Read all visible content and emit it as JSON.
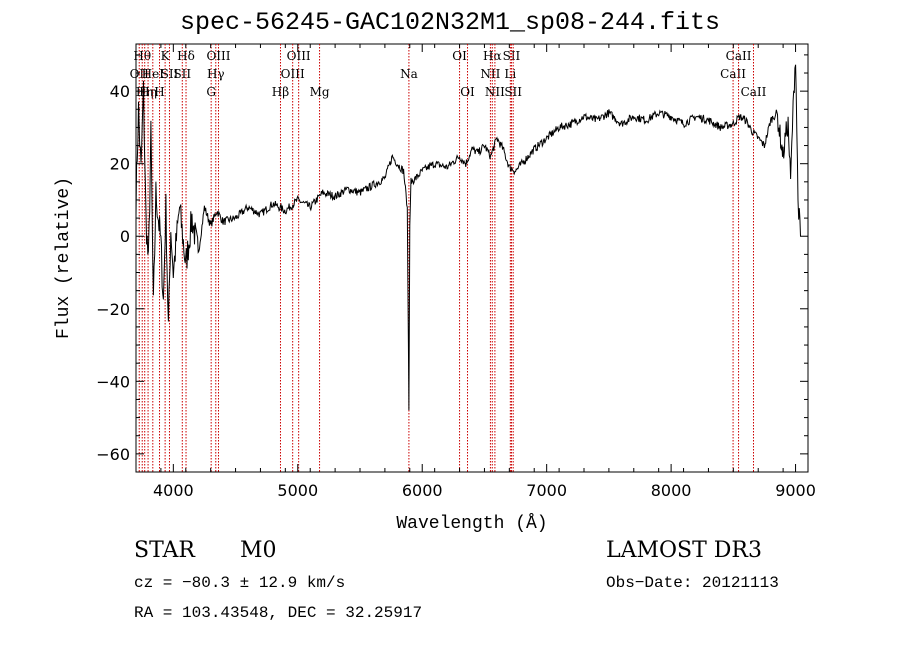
{
  "header": {
    "title": "spec-56245-GAC102N32M1_sp08-244.fits"
  },
  "info": {
    "object_class": "STAR",
    "subclass": "M0",
    "survey": "LAMOST DR3",
    "cz": "cz = −80.3 ± 12.9 km/s",
    "obs_date": "Obs−Date: 20121113",
    "radec": "RA = 103.43548, DEC =  32.25917"
  },
  "chart_data": {
    "type": "line",
    "title": "spec-56245-GAC102N32M1_sp08-244.fits",
    "xlabel": "Wavelength (Å)",
    "ylabel": "Flux (relative)",
    "xlim": [
      3700,
      9100
    ],
    "ylim": [
      -65,
      53
    ],
    "xticks": [
      4000,
      5000,
      6000,
      7000,
      8000,
      9000
    ],
    "yticks": [
      -60,
      -40,
      -20,
      0,
      20,
      40
    ],
    "line_color": "#000000",
    "marker_color": "#cc0000",
    "spectrum": {
      "x": [
        3700,
        3720,
        3740,
        3760,
        3780,
        3800,
        3820,
        3840,
        3860,
        3880,
        3900,
        3920,
        3940,
        3960,
        3980,
        4000,
        4050,
        4100,
        4150,
        4200,
        4250,
        4300,
        4350,
        4400,
        4500,
        4600,
        4700,
        4800,
        4900,
        5000,
        5100,
        5200,
        5300,
        5400,
        5500,
        5600,
        5700,
        5760,
        5800,
        5850,
        5880,
        5893,
        5900,
        5910,
        5950,
        6000,
        6100,
        6200,
        6300,
        6350,
        6400,
        6450,
        6500,
        6550,
        6600,
        6650,
        6700,
        6750,
        6800,
        6900,
        7000,
        7100,
        7200,
        7300,
        7400,
        7500,
        7600,
        7700,
        7800,
        7900,
        8000,
        8100,
        8200,
        8300,
        8400,
        8500,
        8550,
        8600,
        8650,
        8700,
        8750,
        8800,
        8850,
        8900,
        8920,
        8940,
        8960,
        8980,
        9000,
        9020,
        9040
      ],
      "y": [
        10,
        35,
        18,
        40,
        5,
        -8,
        28,
        -20,
        12,
        5,
        -2,
        -18,
        8,
        -25,
        2,
        -10,
        8,
        -8,
        5,
        -5,
        8,
        3,
        7,
        4,
        5,
        8,
        6,
        9,
        7,
        10,
        8,
        12,
        11,
        13,
        12,
        14,
        16,
        22,
        20,
        18,
        8,
        -48,
        3,
        15,
        16,
        18,
        20,
        19,
        22,
        20,
        24,
        23,
        25,
        22,
        27,
        24,
        19,
        18,
        20,
        24,
        27,
        30,
        31,
        33,
        32,
        34,
        31,
        33,
        32,
        34,
        33,
        31,
        33,
        32,
        30,
        31,
        33,
        32,
        29,
        27,
        25,
        32,
        34,
        22,
        28,
        31,
        15,
        35,
        50,
        10,
        0
      ]
    },
    "line_markers": [
      {
        "x": 3726,
        "label": "OII",
        "row": 2
      },
      {
        "x": 3750,
        "label": "Hθ",
        "row": 1
      },
      {
        "x": 3770,
        "label": "Hη",
        "row": 3
      },
      {
        "x": 3797,
        "label": "Hη",
        "row": 3
      },
      {
        "x": 3835,
        "label": "HeI",
        "row": 2
      },
      {
        "x": 3889,
        "label": "H",
        "row": 3
      },
      {
        "x": 3934,
        "label": "K",
        "row": 1
      },
      {
        "x": 3969,
        "label": "SII",
        "row": 2
      },
      {
        "x": 4072,
        "label": "SII",
        "row": 2
      },
      {
        "x": 4102,
        "label": "Hδ",
        "row": 1
      },
      {
        "x": 4304,
        "label": "G",
        "row": 3
      },
      {
        "x": 4341,
        "label": "Hγ",
        "row": 2
      },
      {
        "x": 4363,
        "label": "OIII",
        "row": 1
      },
      {
        "x": 4861,
        "label": "Hβ",
        "row": 3
      },
      {
        "x": 4959,
        "label": "OIII",
        "row": 2
      },
      {
        "x": 5007,
        "label": "OIII",
        "row": 1
      },
      {
        "x": 5175,
        "label": "Mg",
        "row": 3
      },
      {
        "x": 5893,
        "label": "Na",
        "row": 2
      },
      {
        "x": 6300,
        "label": "OI",
        "row": 1
      },
      {
        "x": 6364,
        "label": "OI",
        "row": 3
      },
      {
        "x": 6548,
        "label": "NII",
        "row": 2
      },
      {
        "x": 6563,
        "label": "Hα",
        "row": 1
      },
      {
        "x": 6584,
        "label": "NII",
        "row": 3
      },
      {
        "x": 6708,
        "label": "Li",
        "row": 2
      },
      {
        "x": 6717,
        "label": "SII",
        "row": 1
      },
      {
        "x": 6731,
        "label": "SII",
        "row": 3
      },
      {
        "x": 8498,
        "label": "CaII",
        "row": 2
      },
      {
        "x": 8542,
        "label": "CaII",
        "row": 1
      },
      {
        "x": 8662,
        "label": "CaII",
        "row": 3
      }
    ]
  }
}
